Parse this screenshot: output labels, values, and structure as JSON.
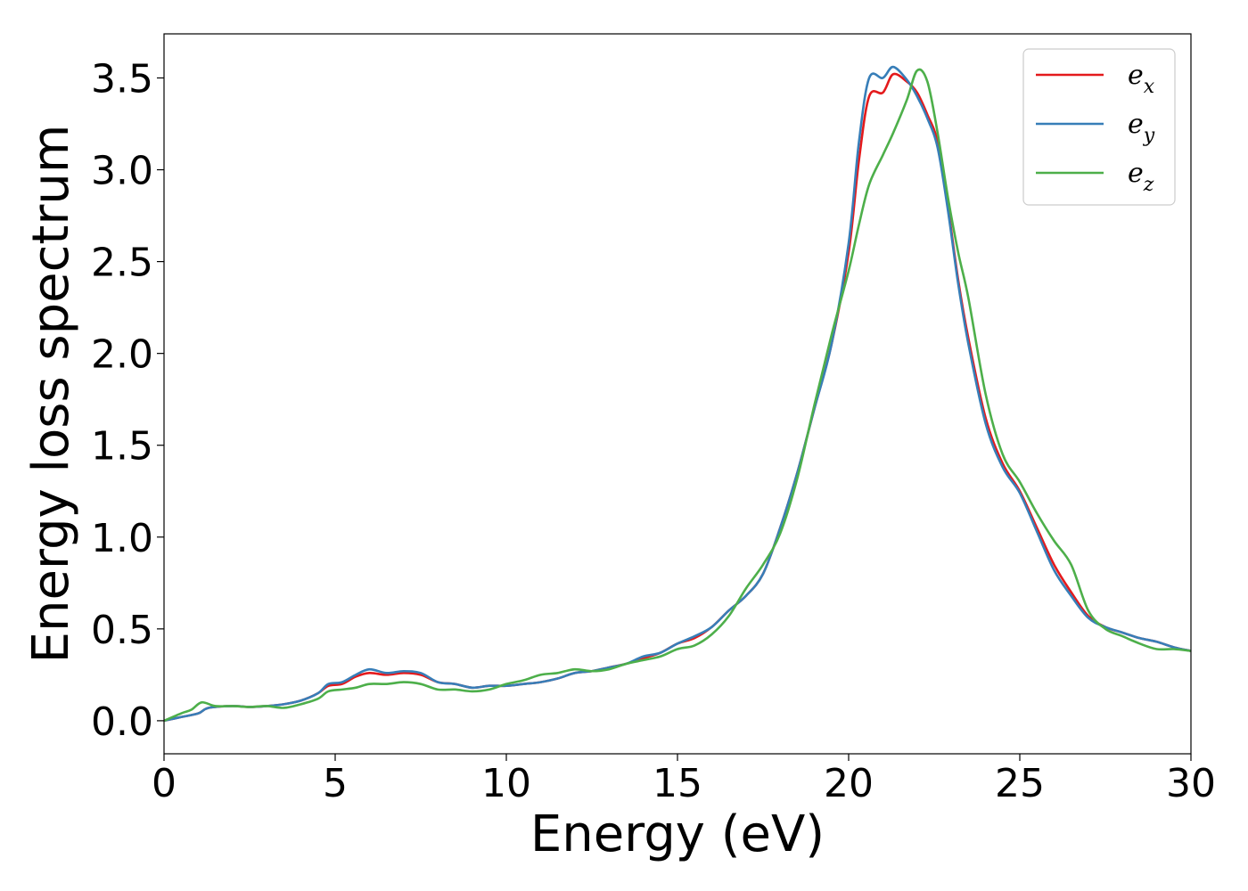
{
  "chart_data": {
    "type": "line",
    "xlabel": "Energy (eV)",
    "ylabel": "Energy loss spectrum",
    "xlim": [
      0,
      30
    ],
    "ylim": [
      -0.18,
      3.74
    ],
    "x_ticks": [
      0,
      5,
      10,
      15,
      20,
      25,
      30
    ],
    "x_tick_labels": [
      "0",
      "5",
      "10",
      "15",
      "20",
      "25",
      "30"
    ],
    "y_ticks": [
      0.0,
      0.5,
      1.0,
      1.5,
      2.0,
      2.5,
      3.0,
      3.5
    ],
    "y_tick_labels": [
      "0.0",
      "0.5",
      "1.0",
      "1.5",
      "2.0",
      "2.5",
      "3.0",
      "3.5"
    ],
    "grid": false,
    "legend_position": "top-right",
    "series": [
      {
        "name_base": "e",
        "name_sub": "x",
        "color": "#e41a1c",
        "points": [
          [
            0,
            0
          ],
          [
            0.5,
            0.02
          ],
          [
            1,
            0.04
          ],
          [
            1.3,
            0.07
          ],
          [
            2,
            0.08
          ],
          [
            2.5,
            0.075
          ],
          [
            3,
            0.08
          ],
          [
            3.5,
            0.09
          ],
          [
            4,
            0.11
          ],
          [
            4.5,
            0.15
          ],
          [
            4.8,
            0.19
          ],
          [
            5.2,
            0.2
          ],
          [
            5.6,
            0.24
          ],
          [
            6,
            0.26
          ],
          [
            6.5,
            0.25
          ],
          [
            7,
            0.26
          ],
          [
            7.5,
            0.25
          ],
          [
            8,
            0.21
          ],
          [
            8.5,
            0.2
          ],
          [
            9,
            0.18
          ],
          [
            9.5,
            0.19
          ],
          [
            10,
            0.19
          ],
          [
            10.5,
            0.2
          ],
          [
            11,
            0.21
          ],
          [
            11.5,
            0.23
          ],
          [
            12,
            0.26
          ],
          [
            12.5,
            0.27
          ],
          [
            13,
            0.29
          ],
          [
            13.5,
            0.31
          ],
          [
            14,
            0.34
          ],
          [
            14.5,
            0.37
          ],
          [
            15,
            0.42
          ],
          [
            15.5,
            0.45
          ],
          [
            16,
            0.51
          ],
          [
            16.5,
            0.6
          ],
          [
            17,
            0.68
          ],
          [
            17.5,
            0.8
          ],
          [
            18,
            1.05
          ],
          [
            18.5,
            1.35
          ],
          [
            19,
            1.7
          ],
          [
            19.5,
            2.05
          ],
          [
            20,
            2.55
          ],
          [
            20.3,
            3.05
          ],
          [
            20.6,
            3.4
          ],
          [
            21,
            3.42
          ],
          [
            21.3,
            3.52
          ],
          [
            21.7,
            3.48
          ],
          [
            22,
            3.42
          ],
          [
            22.3,
            3.3
          ],
          [
            22.6,
            3.15
          ],
          [
            22.9,
            2.8
          ],
          [
            23.2,
            2.4
          ],
          [
            23.5,
            2.08
          ],
          [
            24,
            1.65
          ],
          [
            24.5,
            1.4
          ],
          [
            25,
            1.25
          ],
          [
            25.5,
            1.05
          ],
          [
            26,
            0.85
          ],
          [
            26.5,
            0.7
          ],
          [
            27,
            0.57
          ],
          [
            27.5,
            0.51
          ],
          [
            28,
            0.48
          ],
          [
            28.5,
            0.45
          ],
          [
            29,
            0.43
          ],
          [
            29.5,
            0.4
          ],
          [
            30,
            0.38
          ]
        ]
      },
      {
        "name_base": "e",
        "name_sub": "y",
        "color": "#377eb8",
        "points": [
          [
            0,
            0
          ],
          [
            0.5,
            0.02
          ],
          [
            1,
            0.04
          ],
          [
            1.3,
            0.07
          ],
          [
            2,
            0.08
          ],
          [
            2.5,
            0.075
          ],
          [
            3,
            0.08
          ],
          [
            3.5,
            0.09
          ],
          [
            4,
            0.11
          ],
          [
            4.5,
            0.15
          ],
          [
            4.8,
            0.2
          ],
          [
            5.2,
            0.21
          ],
          [
            5.6,
            0.25
          ],
          [
            6,
            0.28
          ],
          [
            6.5,
            0.26
          ],
          [
            7,
            0.27
          ],
          [
            7.5,
            0.26
          ],
          [
            8,
            0.21
          ],
          [
            8.5,
            0.2
          ],
          [
            9,
            0.18
          ],
          [
            9.5,
            0.19
          ],
          [
            10,
            0.19
          ],
          [
            10.5,
            0.2
          ],
          [
            11,
            0.21
          ],
          [
            11.5,
            0.23
          ],
          [
            12,
            0.26
          ],
          [
            12.5,
            0.27
          ],
          [
            13,
            0.29
          ],
          [
            13.5,
            0.31
          ],
          [
            14,
            0.35
          ],
          [
            14.5,
            0.37
          ],
          [
            15,
            0.42
          ],
          [
            15.5,
            0.46
          ],
          [
            16,
            0.51
          ],
          [
            16.5,
            0.6
          ],
          [
            17,
            0.68
          ],
          [
            17.5,
            0.8
          ],
          [
            18,
            1.05
          ],
          [
            18.5,
            1.35
          ],
          [
            19,
            1.7
          ],
          [
            19.5,
            2.05
          ],
          [
            20,
            2.6
          ],
          [
            20.3,
            3.15
          ],
          [
            20.6,
            3.5
          ],
          [
            21,
            3.5
          ],
          [
            21.3,
            3.56
          ],
          [
            21.7,
            3.49
          ],
          [
            22,
            3.4
          ],
          [
            22.3,
            3.28
          ],
          [
            22.6,
            3.12
          ],
          [
            22.9,
            2.78
          ],
          [
            23.2,
            2.38
          ],
          [
            23.5,
            2.05
          ],
          [
            24,
            1.62
          ],
          [
            24.5,
            1.38
          ],
          [
            25,
            1.24
          ],
          [
            25.5,
            1.03
          ],
          [
            26,
            0.82
          ],
          [
            26.5,
            0.68
          ],
          [
            27,
            0.56
          ],
          [
            27.5,
            0.51
          ],
          [
            28,
            0.48
          ],
          [
            28.5,
            0.45
          ],
          [
            29,
            0.43
          ],
          [
            29.5,
            0.4
          ],
          [
            30,
            0.38
          ]
        ]
      },
      {
        "name_base": "e",
        "name_sub": "z",
        "color": "#4daf4a",
        "points": [
          [
            0,
            0
          ],
          [
            0.5,
            0.04
          ],
          [
            0.8,
            0.06
          ],
          [
            1.1,
            0.1
          ],
          [
            1.5,
            0.08
          ],
          [
            2,
            0.08
          ],
          [
            2.5,
            0.075
          ],
          [
            3,
            0.08
          ],
          [
            3.5,
            0.07
          ],
          [
            4,
            0.09
          ],
          [
            4.5,
            0.12
          ],
          [
            4.8,
            0.16
          ],
          [
            5.2,
            0.17
          ],
          [
            5.6,
            0.18
          ],
          [
            6,
            0.2
          ],
          [
            6.5,
            0.2
          ],
          [
            7,
            0.21
          ],
          [
            7.5,
            0.2
          ],
          [
            8,
            0.17
          ],
          [
            8.5,
            0.17
          ],
          [
            9,
            0.16
          ],
          [
            9.5,
            0.17
          ],
          [
            10,
            0.2
          ],
          [
            10.5,
            0.22
          ],
          [
            11,
            0.25
          ],
          [
            11.5,
            0.26
          ],
          [
            12,
            0.28
          ],
          [
            12.5,
            0.27
          ],
          [
            13,
            0.28
          ],
          [
            13.5,
            0.31
          ],
          [
            14,
            0.33
          ],
          [
            14.5,
            0.35
          ],
          [
            15,
            0.39
          ],
          [
            15.5,
            0.41
          ],
          [
            16,
            0.47
          ],
          [
            16.5,
            0.57
          ],
          [
            17,
            0.72
          ],
          [
            17.5,
            0.85
          ],
          [
            18,
            1.02
          ],
          [
            18.5,
            1.32
          ],
          [
            19,
            1.72
          ],
          [
            19.5,
            2.1
          ],
          [
            20,
            2.45
          ],
          [
            20.3,
            2.7
          ],
          [
            20.6,
            2.92
          ],
          [
            21,
            3.08
          ],
          [
            21.3,
            3.2
          ],
          [
            21.7,
            3.38
          ],
          [
            22,
            3.54
          ],
          [
            22.3,
            3.48
          ],
          [
            22.6,
            3.2
          ],
          [
            22.9,
            2.85
          ],
          [
            23.2,
            2.55
          ],
          [
            23.5,
            2.3
          ],
          [
            24,
            1.78
          ],
          [
            24.5,
            1.45
          ],
          [
            25,
            1.3
          ],
          [
            25.5,
            1.13
          ],
          [
            26,
            0.98
          ],
          [
            26.5,
            0.85
          ],
          [
            27,
            0.6
          ],
          [
            27.5,
            0.5
          ],
          [
            28,
            0.46
          ],
          [
            28.5,
            0.42
          ],
          [
            29,
            0.39
          ],
          [
            29.5,
            0.39
          ],
          [
            30,
            0.38
          ]
        ]
      }
    ]
  }
}
